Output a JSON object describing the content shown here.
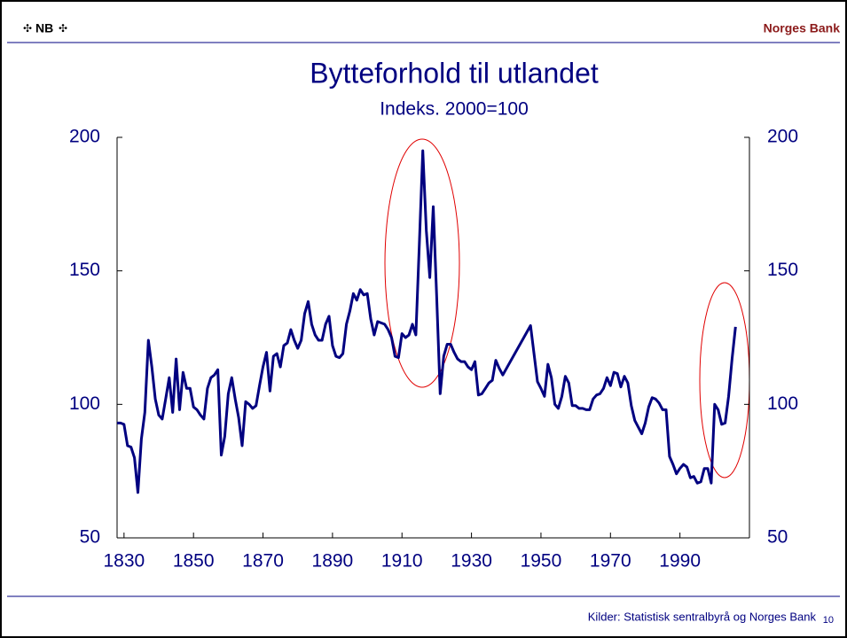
{
  "header": {
    "logo": "NB",
    "brand": "Norges Bank"
  },
  "footer": {
    "source": "Kilder: Statistisk sentralbyrå og Norges Bank",
    "page": "10"
  },
  "chart_data": {
    "type": "line",
    "title": "Bytteforhold til utlandet",
    "subtitle": "Indeks. 2000=100",
    "color": "#000080",
    "x": [
      1828,
      1829,
      1830,
      1831,
      1832,
      1833,
      1834,
      1835,
      1836,
      1837,
      1838,
      1839,
      1840,
      1841,
      1842,
      1843,
      1844,
      1845,
      1846,
      1847,
      1848,
      1849,
      1850,
      1851,
      1852,
      1853,
      1854,
      1855,
      1856,
      1857,
      1858,
      1859,
      1860,
      1861,
      1862,
      1863,
      1864,
      1865,
      1866,
      1867,
      1868,
      1869,
      1870,
      1871,
      1872,
      1873,
      1874,
      1875,
      1876,
      1877,
      1878,
      1879,
      1880,
      1881,
      1882,
      1883,
      1884,
      1885,
      1886,
      1887,
      1888,
      1889,
      1890,
      1891,
      1892,
      1893,
      1894,
      1895,
      1896,
      1897,
      1898,
      1899,
      1900,
      1901,
      1902,
      1903,
      1904,
      1905,
      1906,
      1907,
      1908,
      1909,
      1910,
      1911,
      1912,
      1913,
      1914,
      1915,
      1916,
      1917,
      1918,
      1919,
      1920,
      1921,
      1922,
      1923,
      1924,
      1925,
      1926,
      1927,
      1928,
      1929,
      1930,
      1931,
      1932,
      1933,
      1934,
      1935,
      1936,
      1937,
      1938,
      1939,
      1947,
      1948,
      1949,
      1950,
      1951,
      1952,
      1953,
      1954,
      1955,
      1956,
      1957,
      1958,
      1959,
      1960,
      1961,
      1962,
      1963,
      1964,
      1965,
      1966,
      1967,
      1968,
      1969,
      1970,
      1971,
      1972,
      1973,
      1974,
      1975,
      1976,
      1977,
      1978,
      1979,
      1980,
      1981,
      1982,
      1983,
      1984,
      1985,
      1986,
      1987,
      1988,
      1989,
      1990,
      1991,
      1992,
      1993,
      1994,
      1995,
      1996,
      1997,
      1998,
      1999,
      2000,
      2001,
      2002,
      2003,
      2004,
      2005,
      2006
    ],
    "values": [
      93,
      93,
      92.5,
      84.5,
      84,
      80,
      67,
      87,
      97,
      124,
      114,
      102,
      96,
      94.5,
      102,
      110,
      97,
      117,
      98,
      112,
      106,
      106,
      99,
      98,
      96,
      94.5,
      106,
      110,
      111,
      113,
      81,
      88,
      104,
      110,
      102,
      95,
      84.5,
      101,
      100,
      98.5,
      99.5,
      107,
      114,
      119.5,
      105,
      118,
      119,
      114,
      122,
      123,
      128,
      124,
      121,
      124,
      134,
      138.5,
      130,
      126,
      124,
      124,
      130,
      133,
      122,
      118,
      117.5,
      119,
      130,
      135,
      141.5,
      139,
      143,
      141,
      141.5,
      132,
      126,
      131,
      130.5,
      130,
      128,
      125,
      118,
      117.5,
      126.5,
      125,
      126,
      130,
      126,
      160,
      195,
      165,
      147.5,
      174,
      140,
      104,
      118,
      122.5,
      122.5,
      119.5,
      117,
      116,
      116,
      114,
      113,
      116,
      103.5,
      104,
      106,
      108,
      109,
      116.5,
      113.5,
      111,
      129.5,
      119,
      108.5,
      106,
      103,
      115,
      110,
      100,
      98.5,
      103,
      110.5,
      108,
      99.5,
      99.5,
      98.5,
      98.5,
      98,
      98,
      102,
      103.5,
      104,
      106,
      110,
      107,
      112,
      111.5,
      106.5,
      110.5,
      108,
      99.5,
      94,
      91.5,
      89,
      93,
      99,
      102.5,
      102,
      100.5,
      98,
      98,
      80.5,
      77.5,
      74,
      76,
      77.5,
      76.5,
      72.5,
      73,
      70.5,
      71,
      76,
      76,
      70.5,
      100,
      98,
      92.5,
      93,
      103,
      117,
      129
    ],
    "xlim": [
      1828,
      2010
    ],
    "xticks": [
      1830,
      1850,
      1870,
      1890,
      1910,
      1930,
      1950,
      1970,
      1990
    ],
    "ylim": [
      50,
      200
    ],
    "yticks": [
      50,
      100,
      150,
      200
    ],
    "y2lim": [
      50,
      200
    ],
    "y2ticks": [
      50,
      100,
      150,
      200
    ]
  }
}
